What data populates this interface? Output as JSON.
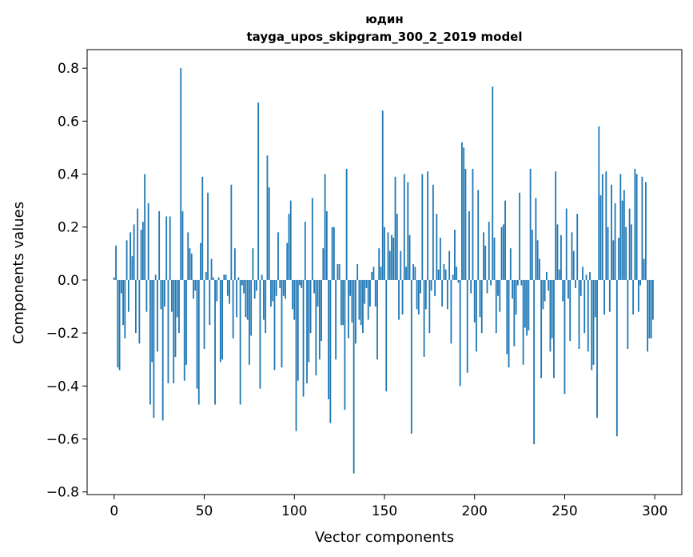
{
  "chart_data": {
    "type": "bar",
    "title": "юдин",
    "subtitle": "tayga_upos_skipgram_300_2_2019 model",
    "xlabel": "Vector components",
    "ylabel": "Components values",
    "xlim": [
      -15,
      315
    ],
    "ylim": [
      -0.81,
      0.87
    ],
    "xticks": [
      0,
      50,
      100,
      150,
      200,
      250,
      300
    ],
    "yticks": [
      -0.8,
      -0.6,
      -0.4,
      -0.2,
      0.0,
      0.2,
      0.4,
      0.6,
      0.8
    ],
    "ytick_labels": [
      "−0.8",
      "−0.6",
      "−0.4",
      "−0.2",
      "0.0",
      "0.2",
      "0.4",
      "0.6",
      "0.8"
    ],
    "bar_color": "#1f77b4",
    "values": [
      0.01,
      0.13,
      -0.33,
      -0.34,
      -0.05,
      -0.17,
      -0.22,
      0.15,
      -0.12,
      0.18,
      0.09,
      0.21,
      -0.2,
      0.27,
      -0.24,
      0.19,
      0.22,
      0.4,
      -0.12,
      0.29,
      -0.47,
      -0.31,
      -0.52,
      0.02,
      -0.27,
      0.26,
      -0.11,
      -0.53,
      -0.1,
      0.24,
      -0.39,
      0.24,
      -0.12,
      -0.39,
      -0.29,
      -0.14,
      -0.2,
      0.8,
      0.26,
      -0.38,
      -0.32,
      0.18,
      0.12,
      0.1,
      -0.07,
      -0.04,
      -0.41,
      -0.47,
      0.14,
      0.39,
      -0.26,
      0.03,
      0.33,
      -0.17,
      0.08,
      0.01,
      -0.47,
      -0.08,
      0.01,
      -0.31,
      -0.3,
      0.02,
      0.02,
      -0.06,
      -0.09,
      0.36,
      -0.22,
      0.12,
      -0.14,
      0.01,
      -0.47,
      -0.02,
      -0.05,
      -0.14,
      -0.15,
      -0.32,
      -0.21,
      0.12,
      -0.07,
      -0.04,
      0.67,
      -0.41,
      0.02,
      -0.15,
      -0.2,
      0.47,
      0.35,
      -0.1,
      -0.08,
      -0.34,
      -0.06,
      0.18,
      -0.03,
      -0.33,
      -0.06,
      -0.07,
      0.14,
      0.25,
      0.3,
      -0.11,
      -0.15,
      -0.57,
      -0.38,
      -0.02,
      -0.03,
      -0.44,
      0.22,
      -0.39,
      -0.31,
      -0.2,
      0.31,
      -0.05,
      -0.36,
      -0.1,
      -0.3,
      -0.23,
      0.12,
      0.4,
      0.26,
      -0.45,
      -0.54,
      0.2,
      0.2,
      -0.3,
      0.06,
      0.06,
      -0.17,
      -0.17,
      -0.49,
      0.42,
      -0.22,
      -0.06,
      -0.16,
      -0.73,
      -0.24,
      0.06,
      -0.15,
      -0.17,
      -0.2,
      -0.09,
      -0.03,
      -0.15,
      -0.1,
      0.03,
      0.05,
      -0.1,
      -0.3,
      0.12,
      0.05,
      0.64,
      0.2,
      -0.42,
      0.18,
      0.11,
      0.17,
      0.16,
      0.39,
      0.25,
      -0.15,
      0.11,
      -0.13,
      0.4,
      0.05,
      0.37,
      0.17,
      -0.58,
      0.06,
      0.05,
      -0.11,
      -0.13,
      -0.05,
      0.4,
      -0.29,
      -0.11,
      0.41,
      -0.2,
      -0.04,
      0.36,
      -0.06,
      0.25,
      0.04,
      0.16,
      -0.1,
      0.06,
      0.04,
      -0.11,
      0.11,
      -0.24,
      0.02,
      0.19,
      0.05,
      -0.01,
      -0.4,
      0.52,
      0.5,
      0.42,
      -0.35,
      0.26,
      -0.05,
      0.42,
      -0.16,
      -0.27,
      0.34,
      -0.14,
      -0.2,
      0.18,
      0.13,
      -0.05,
      0.22,
      -0.02,
      0.73,
      0.16,
      -0.2,
      -0.06,
      -0.12,
      0.2,
      0.21,
      0.3,
      -0.28,
      -0.33,
      0.12,
      -0.07,
      -0.25,
      -0.13,
      -0.02,
      0.33,
      -0.02,
      -0.32,
      -0.18,
      -0.21,
      -0.19,
      0.42,
      0.19,
      -0.62,
      0.31,
      0.15,
      0.08,
      -0.37,
      -0.11,
      -0.08,
      0.03,
      -0.04,
      -0.27,
      -0.22,
      -0.37,
      0.41,
      0.21,
      0.04,
      0.17,
      -0.08,
      -0.43,
      0.27,
      -0.07,
      -0.23,
      0.18,
      0.11,
      -0.03,
      0.25,
      -0.26,
      -0.06,
      0.05,
      -0.2,
      0.02,
      -0.27,
      0.03,
      -0.34,
      -0.32,
      -0.14,
      -0.52,
      0.58,
      0.32,
      0.4,
      -0.13,
      0.41,
      0.2,
      -0.12,
      0.36,
      0.15,
      0.29,
      -0.59,
      0.16,
      0.4,
      0.3,
      0.34,
      0.2,
      -0.26,
      0.27,
      0.21,
      -0.13,
      0.42,
      0.4,
      -0.12,
      -0.02,
      0.39,
      0.08,
      0.37,
      -0.27,
      -0.22,
      -0.22,
      -0.15
    ]
  }
}
